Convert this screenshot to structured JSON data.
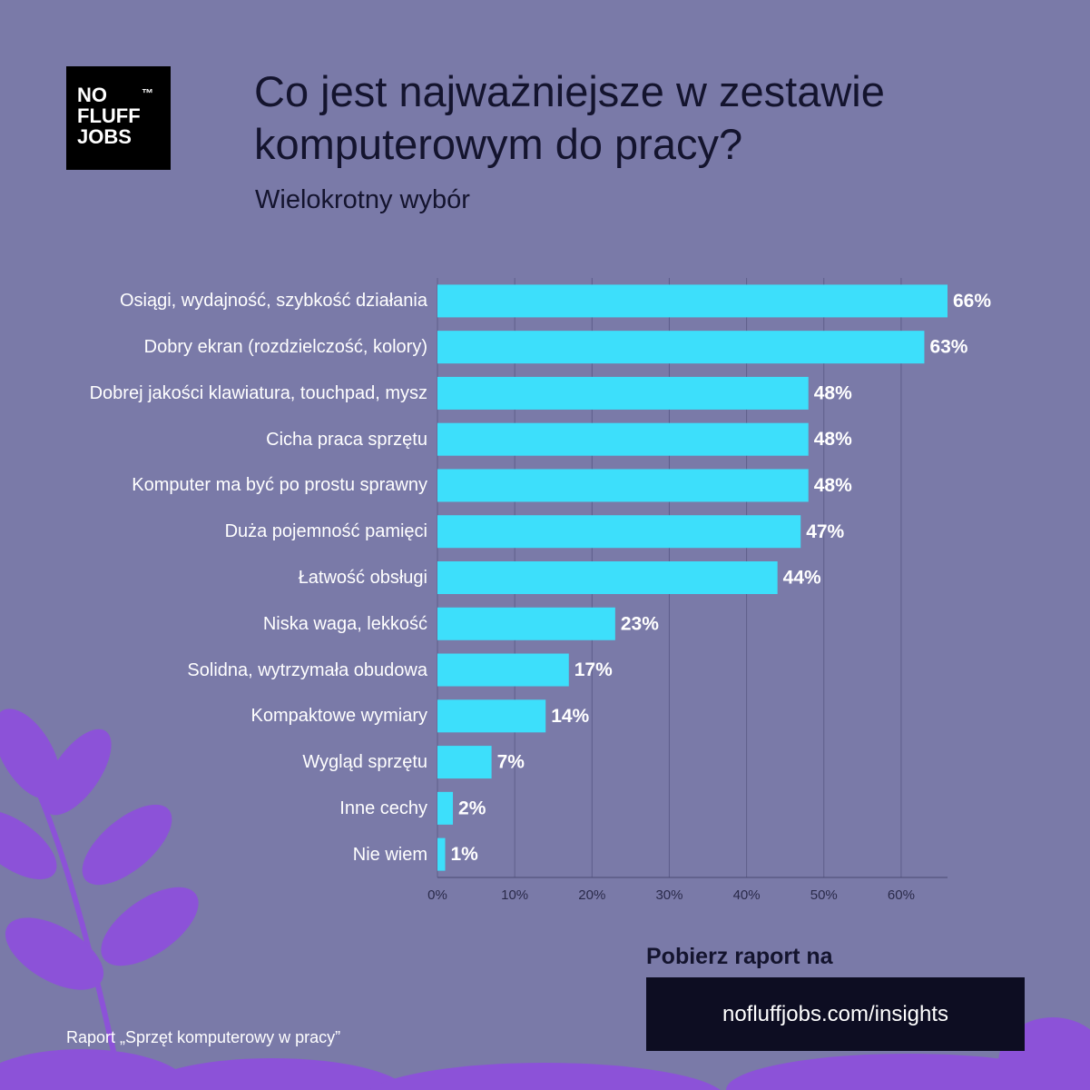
{
  "logo": {
    "lines": [
      "NO",
      "FLUFF",
      "JOBS"
    ],
    "tm": "™"
  },
  "chart_data": {
    "type": "barh",
    "title": "Co jest najważniejsze w zestawie komputerowym do pracy?",
    "subtitle": "Wielokrotny wybór",
    "categories": [
      "Osiągi, wydajność, szybkość działania",
      "Dobry ekran (rozdzielczość, kolory)",
      "Dobrej jakości klawiatura, touchpad, mysz",
      "Cicha praca sprzętu",
      "Komputer ma być po prostu sprawny",
      "Duża pojemność pamięci",
      "Łatwość obsługi",
      "Niska waga, lekkość",
      "Solidna, wytrzymała obudowa",
      "Kompaktowe wymiary",
      "Wygląd sprzętu",
      "Inne cechy",
      "Nie wiem"
    ],
    "values": [
      66,
      63,
      48,
      48,
      48,
      47,
      44,
      23,
      17,
      14,
      7,
      2,
      1
    ],
    "value_labels": [
      "66%",
      "63%",
      "48%",
      "48%",
      "48%",
      "47%",
      "44%",
      "23%",
      "17%",
      "14%",
      "7%",
      "2%",
      "1%"
    ],
    "color": "#3ddffb",
    "xlim": [
      0,
      66
    ],
    "xticks": [
      {
        "value": 0,
        "label": "0%"
      },
      {
        "value": 10,
        "label": "10%"
      },
      {
        "value": 20,
        "label": "20%"
      },
      {
        "value": 30,
        "label": "30%"
      },
      {
        "value": 40,
        "label": "40%"
      },
      {
        "value": 50,
        "label": "50%"
      },
      {
        "value": 60,
        "label": "60%"
      }
    ],
    "grid": true
  },
  "cta": {
    "heading": "Pobierz raport na",
    "link": "nofluffjobs.com/insights"
  },
  "source": "Raport „Sprzęt komputerowy w pracy”"
}
